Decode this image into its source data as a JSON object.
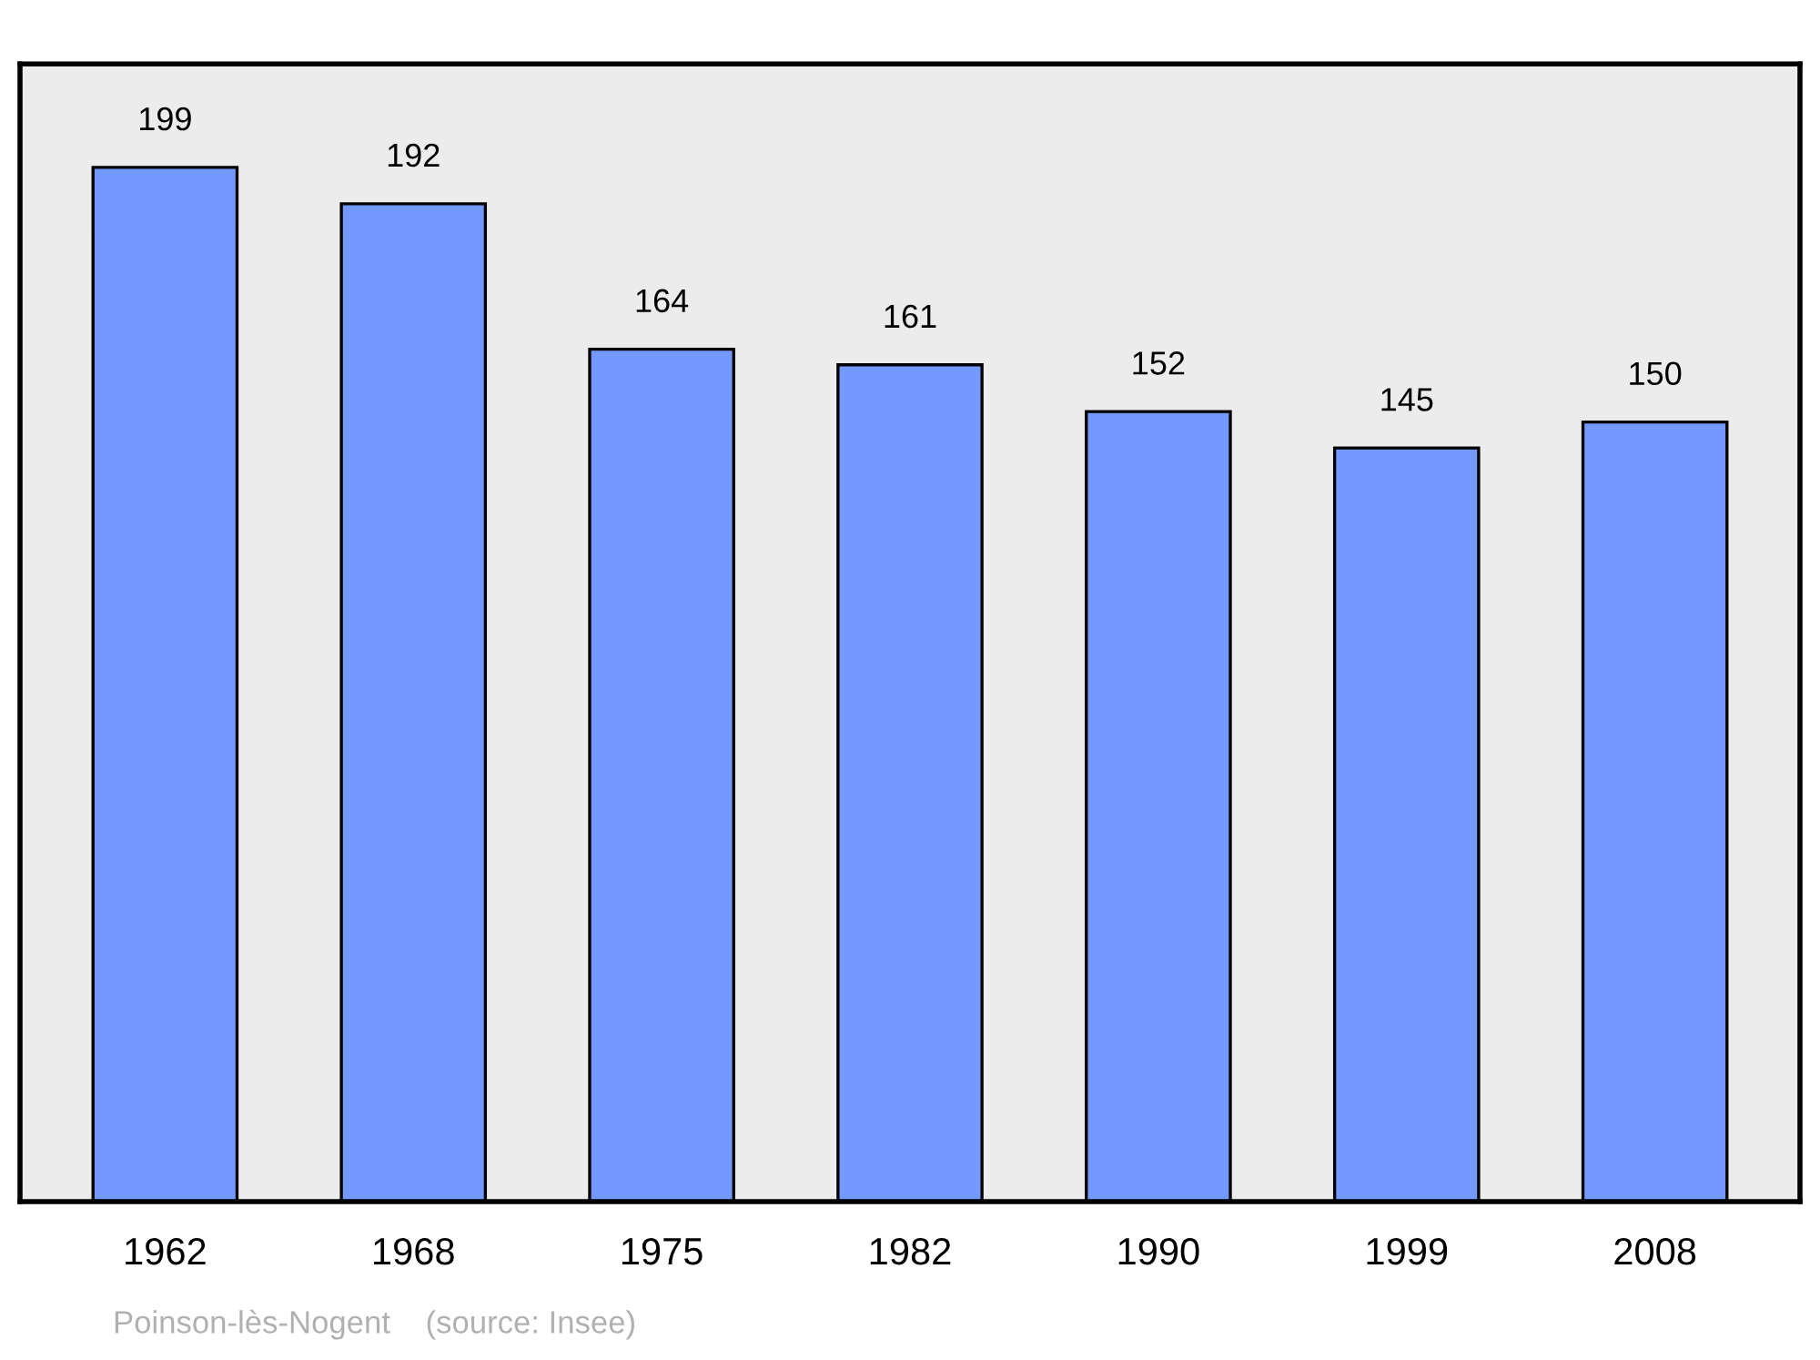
{
  "chart_data": {
    "type": "bar",
    "categories": [
      "1962",
      "1968",
      "1975",
      "1982",
      "1990",
      "1999",
      "2008"
    ],
    "values": [
      199,
      192,
      164,
      161,
      152,
      145,
      150
    ],
    "color": "#7399ff",
    "data_labels": true,
    "grid": false,
    "legend": false,
    "annotations": [
      "Poinson-lès-Nogent    (source: Insee)"
    ]
  }
}
